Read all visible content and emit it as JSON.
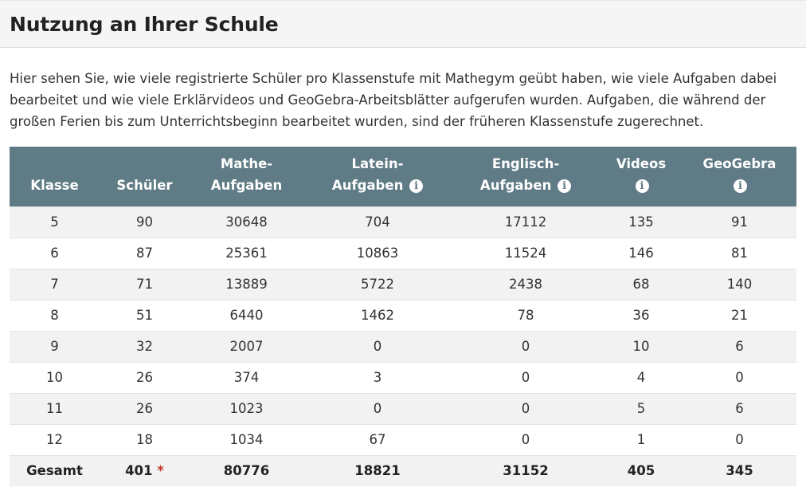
{
  "page": {
    "title": "Nutzung an Ihrer Schule",
    "intro": "Hier sehen Sie, wie viele registrierte Schüler pro Klassenstufe mit Mathegym geübt haben, wie viele Aufgaben dabei bearbeitet und wie viele Erklärvideos und GeoGebra-Arbeitsblätter aufgerufen wurden. Aufgaben, die während der großen Ferien bis zum Unterrichtsbeginn bearbeitet wurden, sind der früheren Klassenstufe zugerechnet."
  },
  "table": {
    "headers": {
      "klasse": "Klasse",
      "schueler": "Schüler",
      "mathe_line1": "Mathe-",
      "mathe_line2": "Aufgaben",
      "latein_line1": "Latein-",
      "latein_line2": "Aufgaben",
      "englisch_line1": "Englisch-",
      "englisch_line2": "Aufgaben",
      "videos": "Videos",
      "geogebra": "GeoGebra"
    },
    "info_icon": "i",
    "rows": [
      {
        "klasse": "5",
        "schueler": "90",
        "mathe": "30648",
        "latein": "704",
        "englisch": "17112",
        "videos": "135",
        "geogebra": "91"
      },
      {
        "klasse": "6",
        "schueler": "87",
        "mathe": "25361",
        "latein": "10863",
        "englisch": "11524",
        "videos": "146",
        "geogebra": "81"
      },
      {
        "klasse": "7",
        "schueler": "71",
        "mathe": "13889",
        "latein": "5722",
        "englisch": "2438",
        "videos": "68",
        "geogebra": "140"
      },
      {
        "klasse": "8",
        "schueler": "51",
        "mathe": "6440",
        "latein": "1462",
        "englisch": "78",
        "videos": "36",
        "geogebra": "21"
      },
      {
        "klasse": "9",
        "schueler": "32",
        "mathe": "2007",
        "latein": "0",
        "englisch": "0",
        "videos": "10",
        "geogebra": "6"
      },
      {
        "klasse": "10",
        "schueler": "26",
        "mathe": "374",
        "latein": "3",
        "englisch": "0",
        "videos": "4",
        "geogebra": "0"
      },
      {
        "klasse": "11",
        "schueler": "26",
        "mathe": "1023",
        "latein": "0",
        "englisch": "0",
        "videos": "5",
        "geogebra": "6"
      },
      {
        "klasse": "12",
        "schueler": "18",
        "mathe": "1034",
        "latein": "67",
        "englisch": "0",
        "videos": "1",
        "geogebra": "0"
      }
    ],
    "total": {
      "label": "Gesamt",
      "schueler": "401",
      "star": "*",
      "mathe": "80776",
      "latein": "18821",
      "englisch": "31152",
      "videos": "405",
      "geogebra": "345"
    }
  },
  "colors": {
    "header_bg": "#5f7b85",
    "stripe": "#f2f2f2",
    "star": "#c0392b"
  }
}
